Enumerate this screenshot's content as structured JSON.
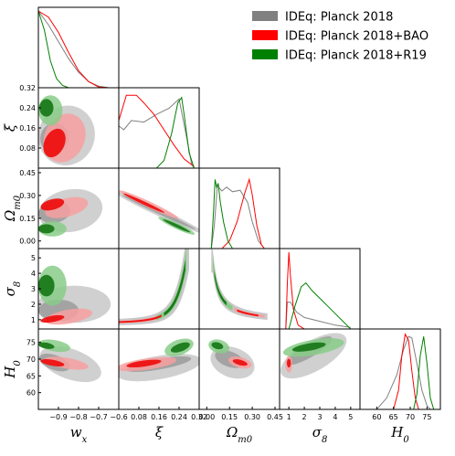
{
  "chart_data": {
    "type": "triangle",
    "legend_position": "top-right",
    "legend": [
      {
        "label": "IDEq: Planck 2018",
        "color": "#808080"
      },
      {
        "label": "IDEq: Planck 2018+BAO",
        "color": "#ff0000"
      },
      {
        "label": "IDEq: Planck 2018+R19",
        "color": "#008000"
      }
    ],
    "parameters": [
      {
        "key": "wx",
        "label": "w_x",
        "range": [
          -1.0,
          -0.6
        ],
        "ticks": [
          "−0.9",
          "−0.8",
          "−0.7",
          "−0.6"
        ],
        "tick_values": [
          -0.9,
          -0.8,
          -0.7,
          -0.6
        ]
      },
      {
        "key": "xi",
        "label": "ξ",
        "range": [
          0.0,
          0.32
        ],
        "ticks": [
          "0.08",
          "0.16",
          "0.24",
          "0.32"
        ],
        "tick_values": [
          0.08,
          0.16,
          0.24,
          0.32
        ]
      },
      {
        "key": "om",
        "label": "Ω_m0",
        "range": [
          -0.05,
          0.48
        ],
        "ticks": [
          "0.00",
          "0.15",
          "0.30",
          "0.45"
        ],
        "tick_values": [
          0.0,
          0.15,
          0.3,
          0.45
        ]
      },
      {
        "key": "s8",
        "label": "σ_8",
        "range": [
          0.4,
          5.6
        ],
        "ticks": [
          "1",
          "2",
          "3",
          "4",
          "5"
        ],
        "tick_values": [
          1,
          2,
          3,
          4,
          5
        ]
      },
      {
        "key": "h0",
        "label": "H_0",
        "range": [
          55,
          79
        ],
        "ticks": [
          "60",
          "65",
          "70",
          "75"
        ],
        "tick_values": [
          60,
          65,
          70,
          75
        ]
      }
    ],
    "axis_labels": {
      "wx": {
        "base": "w",
        "sub": "x"
      },
      "xi": {
        "base": "ξ",
        "sub": ""
      },
      "om": {
        "base": "Ω",
        "sub": "m0"
      },
      "s8": {
        "base": "σ",
        "sub": "8"
      },
      "h0": {
        "base": "H",
        "sub": "0"
      }
    },
    "series": [
      {
        "name": "IDEq: Planck 2018",
        "color": "#808080",
        "light": "#c8c8c8",
        "dark": "#a0a0a0",
        "marginals": {
          "wx": [
            [
              -1.0,
              1.0
            ],
            [
              -0.95,
              0.82
            ],
            [
              -0.9,
              0.6
            ],
            [
              -0.85,
              0.38
            ],
            [
              -0.8,
              0.2
            ],
            [
              -0.75,
              0.08
            ],
            [
              -0.7,
              0.02
            ],
            [
              -0.65,
              0.0
            ]
          ],
          "xi": [
            [
              0.0,
              0.55
            ],
            [
              0.02,
              0.5
            ],
            [
              0.05,
              0.62
            ],
            [
              0.1,
              0.6
            ],
            [
              0.15,
              0.7
            ],
            [
              0.2,
              0.78
            ],
            [
              0.24,
              0.9
            ],
            [
              0.27,
              0.4
            ],
            [
              0.29,
              0.05
            ],
            [
              0.3,
              0.0
            ]
          ],
          "om": [
            [
              0.03,
              0.0
            ],
            [
              0.05,
              0.3
            ],
            [
              0.07,
              0.82
            ],
            [
              0.1,
              0.75
            ],
            [
              0.13,
              0.8
            ],
            [
              0.17,
              0.74
            ],
            [
              0.22,
              0.76
            ],
            [
              0.27,
              0.6
            ],
            [
              0.3,
              0.35
            ],
            [
              0.34,
              0.1
            ],
            [
              0.38,
              0.0
            ]
          ],
          "s8": [
            [
              0.8,
              0.0
            ],
            [
              0.9,
              0.35
            ],
            [
              1.1,
              0.35
            ],
            [
              1.5,
              0.22
            ],
            [
              2.0,
              0.15
            ],
            [
              3.0,
              0.1
            ],
            [
              4.0,
              0.05
            ],
            [
              5.0,
              0.02
            ]
          ],
          "h0": [
            [
              60,
              0.0
            ],
            [
              63,
              0.15
            ],
            [
              66,
              0.45
            ],
            [
              68,
              0.78
            ],
            [
              69.5,
              0.95
            ],
            [
              70.5,
              0.93
            ],
            [
              72,
              0.6
            ],
            [
              73.5,
              0.25
            ],
            [
              75,
              0.05
            ],
            [
              76,
              0.0
            ]
          ]
        }
      },
      {
        "name": "IDEq: Planck 2018+BAO",
        "color": "#ff0000",
        "light": "#f7a0a0",
        "dark": "#ee1111",
        "marginals": {
          "wx": [
            [
              -1.0,
              1.0
            ],
            [
              -0.95,
              0.92
            ],
            [
              -0.9,
              0.72
            ],
            [
              -0.85,
              0.46
            ],
            [
              -0.8,
              0.22
            ],
            [
              -0.75,
              0.08
            ],
            [
              -0.7,
              0.01
            ],
            [
              -0.65,
              0.0
            ]
          ],
          "xi": [
            [
              0.0,
              0.62
            ],
            [
              0.03,
              0.95
            ],
            [
              0.07,
              0.95
            ],
            [
              0.1,
              0.85
            ],
            [
              0.14,
              0.7
            ],
            [
              0.18,
              0.5
            ],
            [
              0.22,
              0.3
            ],
            [
              0.26,
              0.12
            ],
            [
              0.3,
              0.02
            ]
          ],
          "om": [
            [
              0.1,
              0.0
            ],
            [
              0.15,
              0.1
            ],
            [
              0.2,
              0.35
            ],
            [
              0.25,
              0.72
            ],
            [
              0.28,
              0.9
            ],
            [
              0.3,
              0.7
            ],
            [
              0.33,
              0.3
            ],
            [
              0.36,
              0.05
            ],
            [
              0.38,
              0.0
            ]
          ],
          "s8": [
            [
              0.8,
              0.0
            ],
            [
              0.9,
              0.6
            ],
            [
              1.0,
              1.0
            ],
            [
              1.1,
              0.7
            ],
            [
              1.3,
              0.25
            ],
            [
              1.6,
              0.05
            ],
            [
              2.0,
              0.0
            ]
          ],
          "h0": [
            [
              65,
              0.0
            ],
            [
              66.5,
              0.25
            ],
            [
              67.5,
              0.7
            ],
            [
              68.5,
              0.98
            ],
            [
              69.5,
              0.9
            ],
            [
              70.5,
              0.5
            ],
            [
              71.5,
              0.15
            ],
            [
              72.5,
              0.0
            ]
          ]
        }
      },
      {
        "name": "IDEq: Planck 2018+R19",
        "color": "#008000",
        "light": "#88cc88",
        "dark": "#1a7a1a",
        "marginals": {
          "wx": [
            [
              -1.0,
              1.0
            ],
            [
              -0.97,
              0.75
            ],
            [
              -0.94,
              0.35
            ],
            [
              -0.91,
              0.12
            ],
            [
              -0.88,
              0.03
            ],
            [
              -0.85,
              0.0
            ]
          ],
          "xi": [
            [
              0.15,
              0.0
            ],
            [
              0.18,
              0.1
            ],
            [
              0.21,
              0.45
            ],
            [
              0.235,
              0.85
            ],
            [
              0.25,
              0.92
            ],
            [
              0.26,
              0.7
            ],
            [
              0.28,
              0.2
            ],
            [
              0.3,
              0.0
            ]
          ],
          "om": [
            [
              0.03,
              0.0
            ],
            [
              0.045,
              0.5
            ],
            [
              0.055,
              0.9
            ],
            [
              0.065,
              0.8
            ],
            [
              0.075,
              0.85
            ],
            [
              0.09,
              0.6
            ],
            [
              0.11,
              0.35
            ],
            [
              0.14,
              0.1
            ],
            [
              0.17,
              0.0
            ]
          ],
          "s8": [
            [
              1.0,
              0.0
            ],
            [
              1.4,
              0.3
            ],
            [
              1.8,
              0.55
            ],
            [
              2.1,
              0.6
            ],
            [
              2.5,
              0.5
            ],
            [
              3.0,
              0.4
            ],
            [
              3.5,
              0.3
            ],
            [
              4.0,
              0.2
            ],
            [
              4.5,
              0.1
            ],
            [
              5.0,
              0.0
            ]
          ],
          "h0": [
            [
              71,
              0.0
            ],
            [
              72,
              0.2
            ],
            [
              73,
              0.7
            ],
            [
              74,
              0.95
            ],
            [
              75,
              0.6
            ],
            [
              76,
              0.15
            ],
            [
              77,
              0.0
            ]
          ]
        }
      }
    ]
  }
}
